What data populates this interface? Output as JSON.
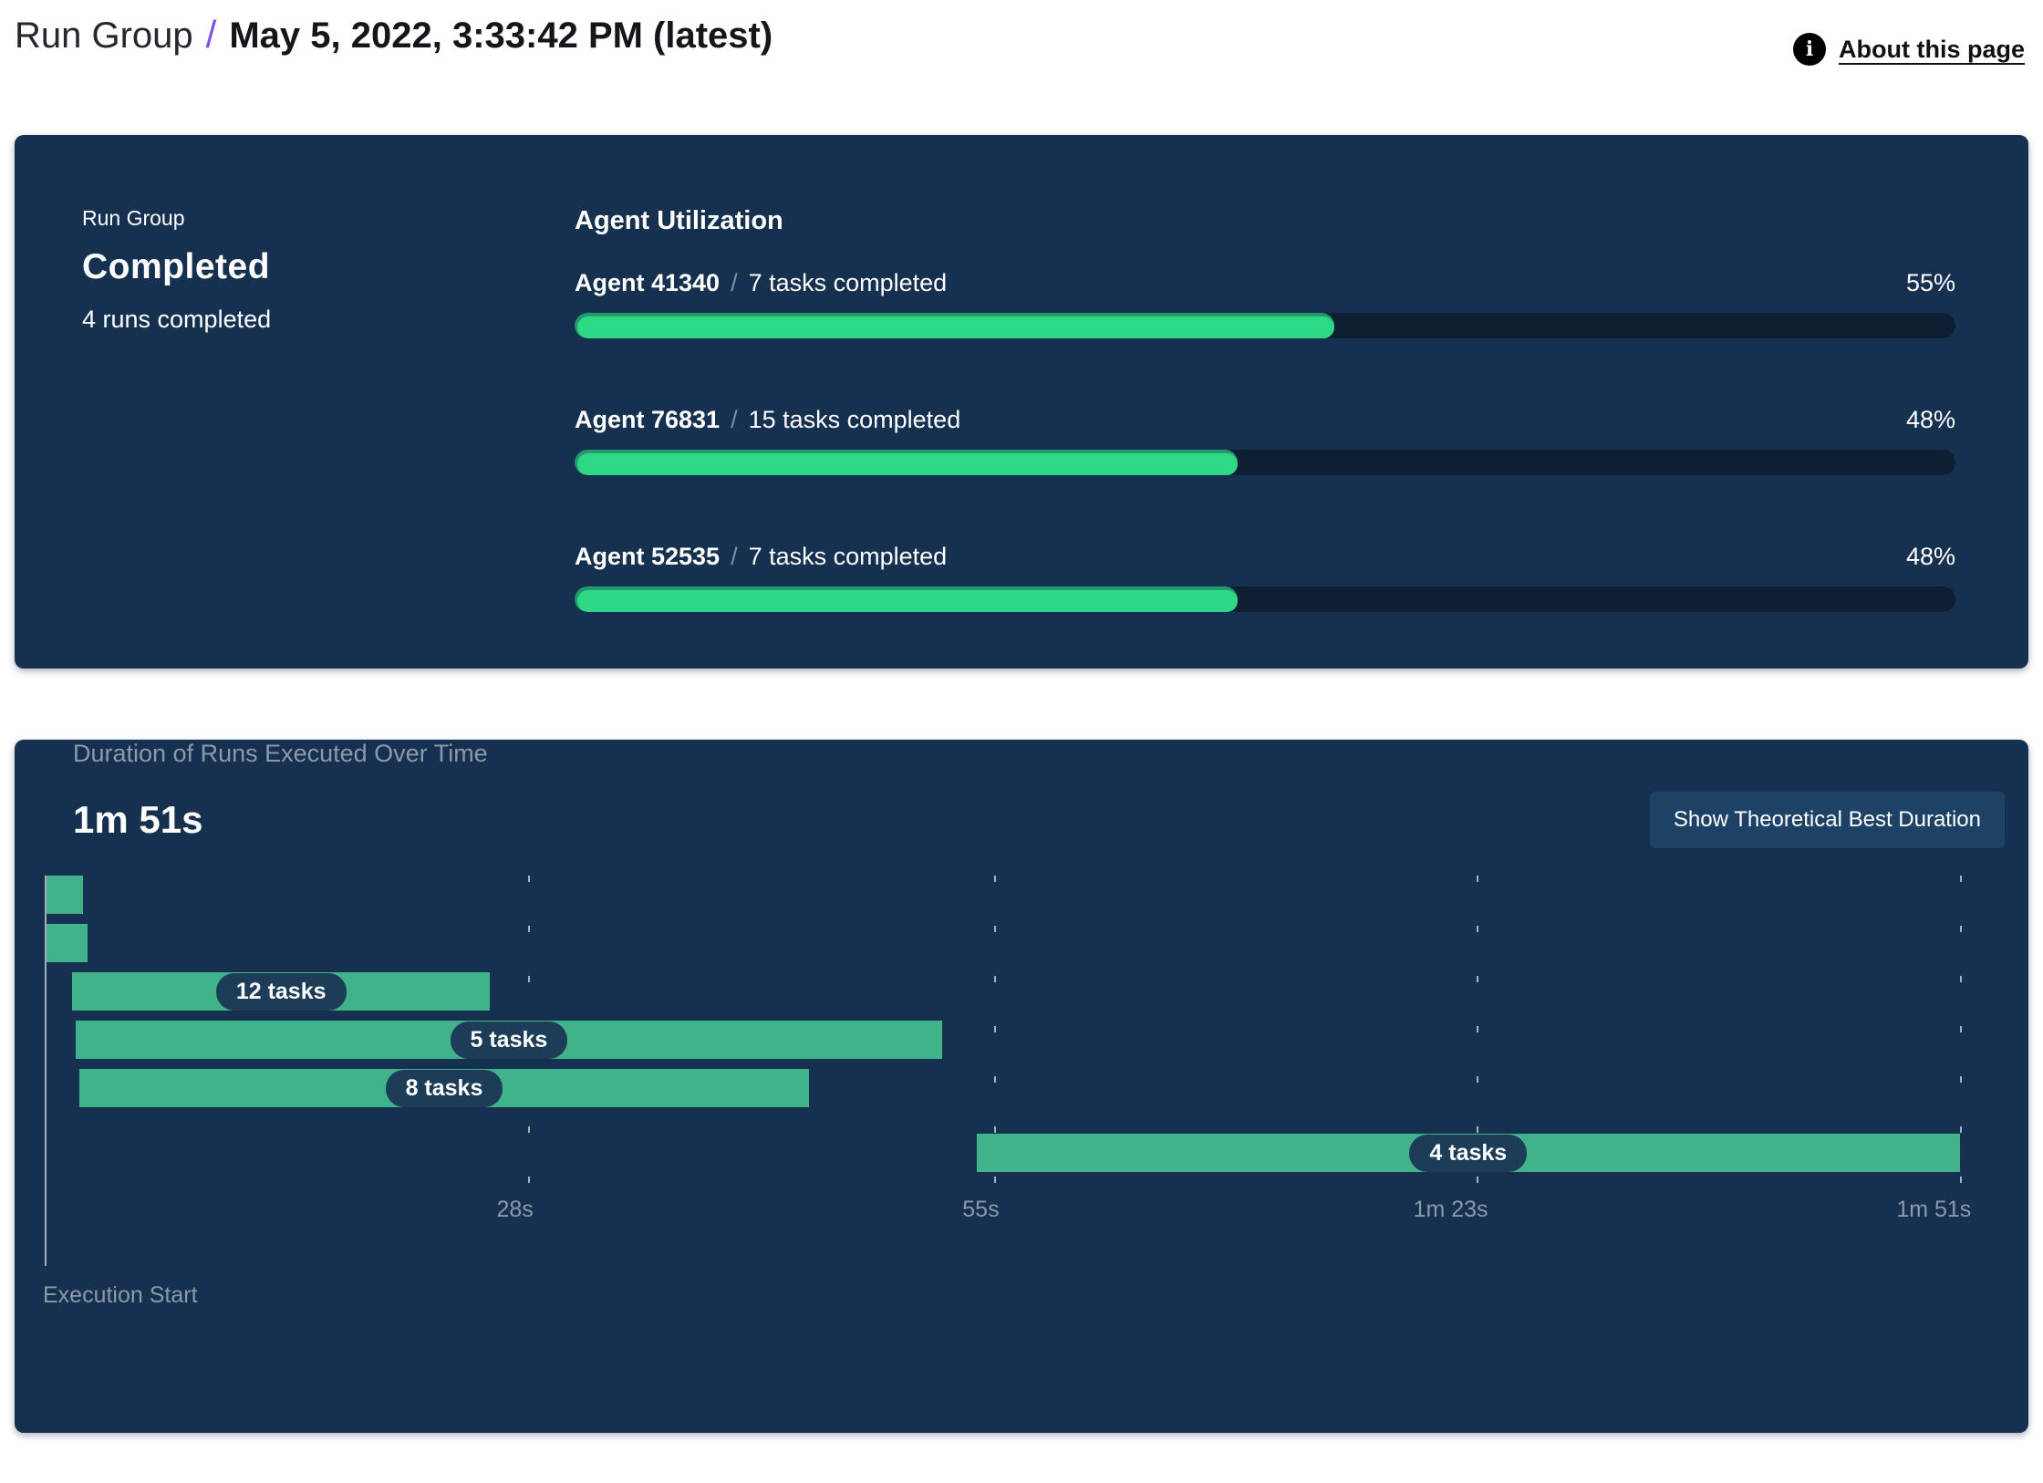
{
  "header": {
    "breadcrumb_root": "Run Group",
    "separator": "/",
    "title": "May 5, 2022, 3:33:42 PM (latest)",
    "about_label": "About this page",
    "about_icon": "info-icon"
  },
  "colors": {
    "accent_purple": "#7a4ff0",
    "card_background": "#163050",
    "progress_green": "#2dd985",
    "progress_green_dark": "#24996b",
    "progress_track": "#0f1e33",
    "gantt_green": "#41b38a",
    "muted_text": "#8b99ad",
    "pill_background": "#1d3c57",
    "button_background": "#1d4266"
  },
  "status_card": {
    "label": "Run Group",
    "status": "Completed",
    "subtext": "4 runs completed",
    "utilization": {
      "title": "Agent Utilization",
      "agents": [
        {
          "name": "Agent 41340",
          "separator": "/",
          "tasks": "7 tasks completed",
          "percent": 55
        },
        {
          "name": "Agent 76831",
          "separator": "/",
          "tasks": "15 tasks completed",
          "percent": 48
        },
        {
          "name": "Agent 52535",
          "separator": "/",
          "tasks": "7 tasks completed",
          "percent": 48
        }
      ]
    }
  },
  "duration_card": {
    "title": "Duration of Runs Executed Over Time",
    "total_duration": "1m 51s",
    "button_label": "Show Theoretical Best Duration",
    "execution_start_label": "Execution Start",
    "gantt": {
      "span_s": 111,
      "ticks": [
        {
          "s": 28,
          "label": "28s"
        },
        {
          "s": 55,
          "label": "55s"
        },
        {
          "s": 83,
          "label": "1m 23s"
        },
        {
          "s": 111,
          "label": "1m 51s"
        }
      ],
      "bars": [
        {
          "start_s": 0.1,
          "end_s": 2.2,
          "label": ""
        },
        {
          "start_s": 0.1,
          "end_s": 2.5,
          "label": ""
        },
        {
          "start_s": 1.6,
          "end_s": 25.8,
          "label": "12 tasks"
        },
        {
          "start_s": 1.8,
          "end_s": 52.0,
          "label": "5 tasks"
        },
        {
          "start_s": 2.0,
          "end_s": 44.3,
          "label": "8 tasks"
        },
        {
          "start_s": 54.0,
          "end_s": 111.0,
          "label": "4 tasks"
        }
      ]
    }
  },
  "chart_data": [
    {
      "type": "bar",
      "title": "Agent Utilization",
      "categories": [
        "Agent 41340",
        "Agent 76831",
        "Agent 52535"
      ],
      "values": [
        55,
        48,
        48
      ],
      "value_unit": "%",
      "annotations": [
        "7 tasks completed",
        "15 tasks completed",
        "7 tasks completed"
      ],
      "xlim": [
        0,
        100
      ],
      "orientation": "horizontal"
    },
    {
      "type": "gantt",
      "title": "Duration of Runs Executed Over Time",
      "total_duration_label": "1m 51s",
      "xlabel": "Execution Start",
      "x_ticks_s": [
        28,
        55,
        83,
        111
      ],
      "x_tick_labels": [
        "28s",
        "55s",
        "1m 23s",
        "1m 51s"
      ],
      "xlim_s": [
        0,
        111
      ],
      "bars": [
        {
          "row": 1,
          "start_s": 0.1,
          "end_s": 2.2,
          "label": ""
        },
        {
          "row": 2,
          "start_s": 0.1,
          "end_s": 2.5,
          "label": ""
        },
        {
          "row": 3,
          "start_s": 1.6,
          "end_s": 25.8,
          "label": "12 tasks"
        },
        {
          "row": 4,
          "start_s": 1.8,
          "end_s": 52.0,
          "label": "5 tasks"
        },
        {
          "row": 5,
          "start_s": 2.0,
          "end_s": 44.3,
          "label": "8 tasks"
        },
        {
          "row": 6,
          "start_s": 54.0,
          "end_s": 111.0,
          "label": "4 tasks"
        }
      ]
    }
  ]
}
